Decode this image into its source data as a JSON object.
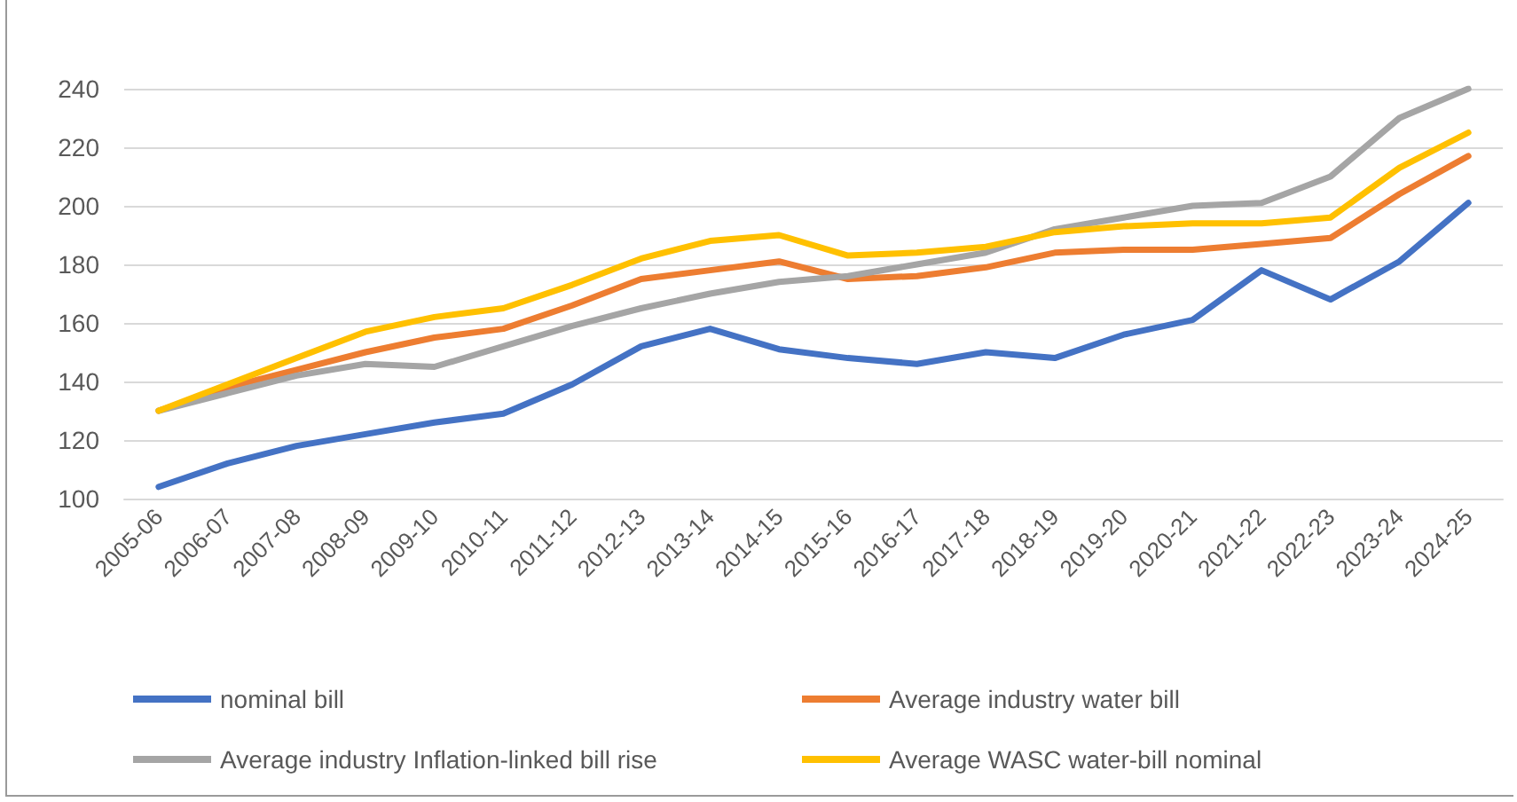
{
  "chart_data": {
    "type": "line",
    "categories": [
      "2005-06",
      "2006-07",
      "2007-08",
      "2008-09",
      "2009-10",
      "2010-11",
      "2011-12",
      "2012-13",
      "2013-14",
      "2014-15",
      "2015-16",
      "2016-17",
      "2017-18",
      "2018-19",
      "2019-20",
      "2020-21",
      "2021-22",
      "2022-23",
      "2023-24",
      "2024-25"
    ],
    "series": [
      {
        "name": "nominal bill",
        "color": "#4472c4",
        "values": [
          104,
          112,
          118,
          122,
          126,
          129,
          139,
          152,
          158,
          151,
          148,
          146,
          150,
          148,
          156,
          161,
          178,
          168,
          181,
          201
        ]
      },
      {
        "name": "Average industry water bill",
        "color": "#ed7d31",
        "values": [
          130,
          138,
          144,
          150,
          155,
          158,
          166,
          175,
          178,
          181,
          175,
          176,
          179,
          184,
          185,
          185,
          187,
          189,
          204,
          217
        ]
      },
      {
        "name": "Average industry Inflation-linked bill rise",
        "color": "#a5a5a5",
        "values": [
          130,
          136,
          142,
          146,
          145,
          152,
          159,
          165,
          170,
          174,
          176,
          180,
          184,
          192,
          196,
          200,
          201,
          210,
          230,
          240
        ]
      },
      {
        "name": "Average WASC water-bill nominal",
        "color": "#ffc000",
        "values": [
          130,
          139,
          148,
          157,
          162,
          165,
          173,
          182,
          188,
          190,
          183,
          184,
          186,
          191,
          193,
          194,
          194,
          196,
          213,
          225
        ]
      }
    ],
    "ylim": [
      100,
      240
    ],
    "yticks": [
      100,
      120,
      140,
      160,
      180,
      200,
      220,
      240
    ],
    "grid": "y",
    "legend": "bottom",
    "marker": "none",
    "line_style": "solid"
  }
}
